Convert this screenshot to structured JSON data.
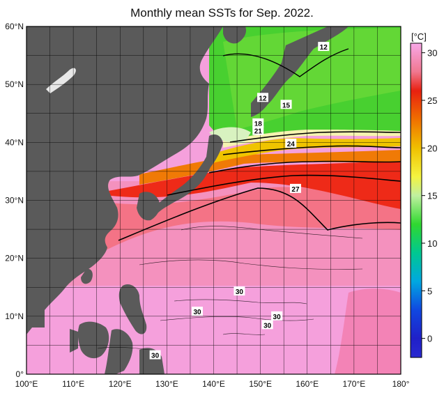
{
  "title": "Monthly mean SSTs for Sep. 2022.",
  "colorbar": {
    "unit": "[°C]",
    "ticks": [
      "30",
      "25",
      "20",
      "15",
      "10",
      "5",
      "0"
    ],
    "tick_values": [
      30,
      25,
      20,
      15,
      10,
      5,
      0
    ],
    "min": -2,
    "max": 31,
    "stops": [
      {
        "v": -2,
        "color": "#2a2ad0"
      },
      {
        "v": 0,
        "color": "#2020c8"
      },
      {
        "v": 3,
        "color": "#1048e0"
      },
      {
        "v": 6,
        "color": "#00a8e0"
      },
      {
        "v": 9,
        "color": "#00c890"
      },
      {
        "v": 12,
        "color": "#30d830"
      },
      {
        "v": 15,
        "color": "#c0f0a0"
      },
      {
        "v": 17,
        "color": "#f4f440"
      },
      {
        "v": 20,
        "color": "#f0c000"
      },
      {
        "v": 23,
        "color": "#f07000"
      },
      {
        "v": 26,
        "color": "#e82010"
      },
      {
        "v": 28,
        "color": "#f07890"
      },
      {
        "v": 31,
        "color": "#f8a8e8"
      }
    ]
  },
  "axes": {
    "lat_ticks": [
      "60°N",
      "50°N",
      "40°N",
      "30°N",
      "20°N",
      "10°N",
      "0°"
    ],
    "lat_values": [
      60,
      50,
      40,
      30,
      20,
      10,
      0
    ],
    "lon_ticks": [
      "100°E",
      "110°E",
      "120°E",
      "130°E",
      "140°E",
      "150°E",
      "160°E",
      "170°E",
      "180°"
    ],
    "lon_values": [
      100,
      110,
      120,
      130,
      140,
      150,
      160,
      170,
      180
    ]
  },
  "contour_labels": [
    {
      "text": "12",
      "lon": 163.5,
      "lat": 56.5
    },
    {
      "text": "12",
      "lon": 150.5,
      "lat": 47.7
    },
    {
      "text": "15",
      "lon": 155.5,
      "lat": 46.5
    },
    {
      "text": "18",
      "lon": 149.5,
      "lat": 43.3
    },
    {
      "text": "21",
      "lon": 149.5,
      "lat": 42.0
    },
    {
      "text": "24",
      "lon": 156.5,
      "lat": 39.8
    },
    {
      "text": "27",
      "lon": 157.5,
      "lat": 32.0
    },
    {
      "text": "30",
      "lon": 145.5,
      "lat": 14.3
    },
    {
      "text": "30",
      "lon": 136.5,
      "lat": 10.8
    },
    {
      "text": "30",
      "lon": 153.5,
      "lat": 10.0
    },
    {
      "text": "30",
      "lon": 151.5,
      "lat": 8.5
    },
    {
      "text": "30",
      "lon": 127.5,
      "lat": 3.3
    }
  ],
  "colors": {
    "land": "#5a5a5a",
    "frame": "#000000",
    "grid": "#000000"
  }
}
